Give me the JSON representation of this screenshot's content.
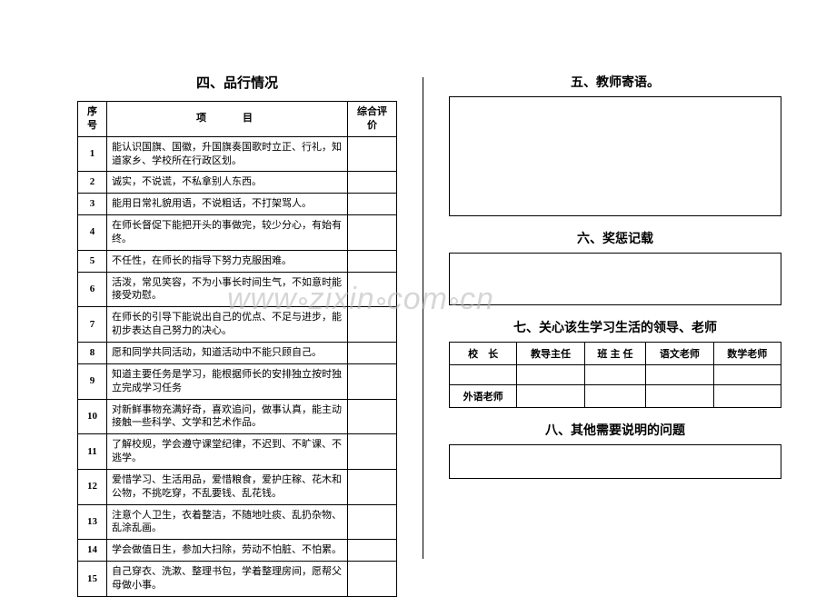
{
  "left": {
    "title": "四、品行情况",
    "headers": {
      "num": "序号",
      "item": "项　　目",
      "eval": "综合评价"
    },
    "rows": [
      {
        "n": "1",
        "text": "能认识国旗、国徽，升国旗奏国歌时立正、行礼，知道家乡、学校所在行政区划。"
      },
      {
        "n": "2",
        "text": "诚实，不说谎，不私拿别人东西。"
      },
      {
        "n": "3",
        "text": "能用日常礼貌用语，不说粗话，不打架骂人。"
      },
      {
        "n": "4",
        "text": "在师长督促下能把开头的事做完，较少分心，有始有终。"
      },
      {
        "n": "5",
        "text": "不任性，在师长的指导下努力克服困难。"
      },
      {
        "n": "6",
        "text": "活泼，常见笑容，不为小事长时间生气，不如意时能接受劝慰。"
      },
      {
        "n": "7",
        "text": "在师长的引导下能说出自己的优点、不足与进步，能初步表达自己努力的决心。"
      },
      {
        "n": "8",
        "text": "愿和同学共同活动，知道活动中不能只顾自己。"
      },
      {
        "n": "9",
        "text": "知道主要任务是学习，能根据师长的安排独立按时独立完成学习任务"
      },
      {
        "n": "10",
        "text": "对新鲜事物充满好奇，喜欢追问，做事认真，能主动接触一些科学、文学和艺术作品。"
      },
      {
        "n": "11",
        "text": "了解校规，学会遵守课堂纪律，不迟到、不旷课、不逃学。"
      },
      {
        "n": "12",
        "text": "爱惜学习、生活用品，爱惜粮食，爱护庄稼、花木和公物，不挑吃穿，不乱要钱、乱花钱。"
      },
      {
        "n": "13",
        "text": "注意个人卫生，衣着整洁，不随地吐痰、乱扔杂物、乱涂乱画。"
      },
      {
        "n": "14",
        "text": "学会做值日生，参加大扫除，劳动不怕脏、不怕累。"
      },
      {
        "n": "15",
        "text": "自己穿衣、洗漱、整理书包，学着整理房间，愿帮父母做小事。"
      }
    ]
  },
  "right": {
    "s5_title": "五、教师寄语。",
    "s6_title": "六、奖惩记载",
    "s7_title": "七、关心该生学习生活的领导、老师",
    "s8_title": "八、其他需要说明的问题",
    "teacher_labels": {
      "principal": "校　长",
      "dean": "教导主任",
      "head": "班 主 任",
      "chinese": "语文老师",
      "math": "数学老师",
      "foreign": "外语老师"
    }
  },
  "watermark": "www zixin com cn"
}
